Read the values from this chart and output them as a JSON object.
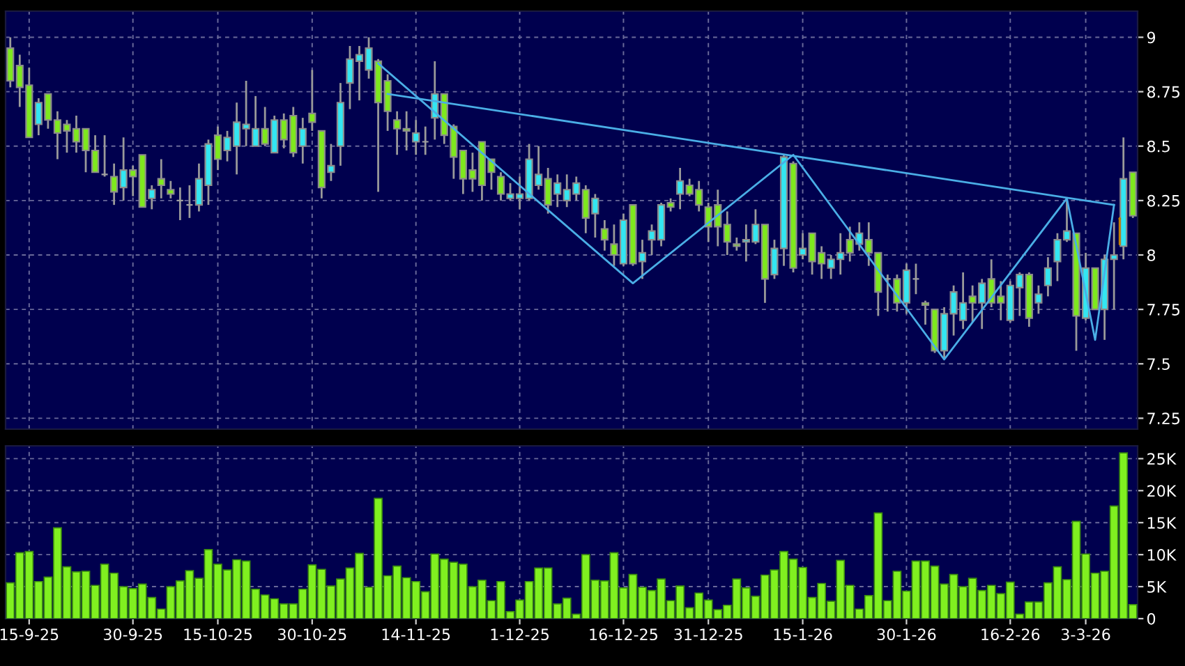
{
  "chart_data": [
    {
      "type": "candlestick",
      "tick_labels": "y",
      "grid": true,
      "ylim": [
        7.2,
        9.12
      ],
      "yticks": [
        7.25,
        7.5,
        7.75,
        8,
        8.25,
        8.5,
        8.75,
        9
      ],
      "categories": [
        null,
        null,
        null,
        null,
        null,
        null,
        null,
        null,
        null,
        null,
        null,
        null,
        null,
        null,
        null,
        null,
        null,
        null,
        null,
        null,
        null,
        null,
        null,
        null,
        null,
        null,
        null,
        null,
        null,
        null,
        null,
        null,
        null,
        null,
        null,
        null,
        null,
        null,
        null,
        null,
        null,
        null,
        null,
        null,
        null,
        null,
        null,
        null,
        null,
        null,
        null,
        null,
        null,
        null,
        null,
        null,
        null,
        null,
        null,
        null,
        null,
        null,
        null,
        null,
        null,
        null,
        null,
        null,
        null,
        null,
        null,
        null,
        null,
        null,
        null,
        null,
        null,
        null,
        null,
        null,
        null,
        null,
        null,
        null,
        null,
        null,
        null,
        null,
        null,
        null,
        null,
        null,
        null,
        null,
        null,
        null,
        null,
        null,
        null,
        null,
        null,
        null,
        null,
        null,
        null,
        null,
        null,
        null,
        null,
        null,
        null,
        null,
        null,
        null,
        null,
        null,
        null,
        null,
        null,
        null
      ],
      "ohlc": [
        [
          8.95,
          9.0,
          8.77,
          8.8
        ],
        [
          8.87,
          8.92,
          8.68,
          8.77
        ],
        [
          8.78,
          8.86,
          8.54,
          8.54
        ],
        [
          8.6,
          8.72,
          8.55,
          8.7
        ],
        [
          8.74,
          8.74,
          8.58,
          8.62
        ],
        [
          8.62,
          8.66,
          8.44,
          8.56
        ],
        [
          8.6,
          8.62,
          8.47,
          8.57
        ],
        [
          8.58,
          8.64,
          8.47,
          8.52
        ],
        [
          8.58,
          8.58,
          8.38,
          8.48
        ],
        [
          8.48,
          8.55,
          8.38,
          8.38
        ],
        [
          8.37,
          8.55,
          8.36,
          8.37
        ],
        [
          8.36,
          8.42,
          8.23,
          8.29
        ],
        [
          8.31,
          8.54,
          8.25,
          8.39
        ],
        [
          8.39,
          8.41,
          8.27,
          8.36
        ],
        [
          8.46,
          8.46,
          8.22,
          8.22
        ],
        [
          8.26,
          8.32,
          8.21,
          8.3
        ],
        [
          8.35,
          8.44,
          8.26,
          8.32
        ],
        [
          8.3,
          8.34,
          8.26,
          8.28
        ],
        [
          8.25,
          8.31,
          8.16,
          8.25
        ],
        [
          8.23,
          8.32,
          8.17,
          8.23
        ],
        [
          8.23,
          8.42,
          8.2,
          8.35
        ],
        [
          8.32,
          8.53,
          8.23,
          8.51
        ],
        [
          8.55,
          8.59,
          8.39,
          8.44
        ],
        [
          8.48,
          8.57,
          8.43,
          8.54
        ],
        [
          8.5,
          8.7,
          8.37,
          8.61
        ],
        [
          8.58,
          8.8,
          8.5,
          8.6
        ],
        [
          8.5,
          8.73,
          8.5,
          8.58
        ],
        [
          8.58,
          8.68,
          8.5,
          8.51
        ],
        [
          8.47,
          8.64,
          8.47,
          8.62
        ],
        [
          8.62,
          8.65,
          8.49,
          8.53
        ],
        [
          8.64,
          8.68,
          8.45,
          8.47
        ],
        [
          8.5,
          8.63,
          8.42,
          8.58
        ],
        [
          8.65,
          8.85,
          8.57,
          8.61
        ],
        [
          8.57,
          8.57,
          8.26,
          8.31
        ],
        [
          8.38,
          8.51,
          8.34,
          8.41
        ],
        [
          8.5,
          8.79,
          8.41,
          8.7
        ],
        [
          8.79,
          8.96,
          8.67,
          8.9
        ],
        [
          8.89,
          8.96,
          8.71,
          8.92
        ],
        [
          8.85,
          9.0,
          8.81,
          8.95
        ],
        [
          8.89,
          8.9,
          8.29,
          8.7
        ],
        [
          8.8,
          8.83,
          8.57,
          8.66
        ],
        [
          8.62,
          8.66,
          8.46,
          8.58
        ],
        [
          8.58,
          8.66,
          8.48,
          8.57
        ],
        [
          8.52,
          8.62,
          8.46,
          8.56
        ],
        [
          8.52,
          8.59,
          8.46,
          8.52
        ],
        [
          8.63,
          8.89,
          8.53,
          8.74
        ],
        [
          8.74,
          8.74,
          8.51,
          8.55
        ],
        [
          8.59,
          8.6,
          8.35,
          8.45
        ],
        [
          8.48,
          8.48,
          8.28,
          8.35
        ],
        [
          8.39,
          8.47,
          8.29,
          8.35
        ],
        [
          8.52,
          8.52,
          8.25,
          8.32
        ],
        [
          8.44,
          8.44,
          8.3,
          8.38
        ],
        [
          8.36,
          8.38,
          8.25,
          8.28
        ],
        [
          8.26,
          8.33,
          8.25,
          8.28
        ],
        [
          8.26,
          8.36,
          8.21,
          8.28
        ],
        [
          8.26,
          8.51,
          8.25,
          8.44
        ],
        [
          8.32,
          8.5,
          8.3,
          8.37
        ],
        [
          8.35,
          8.4,
          8.19,
          8.23
        ],
        [
          8.28,
          8.37,
          8.22,
          8.33
        ],
        [
          8.25,
          8.37,
          8.22,
          8.3
        ],
        [
          8.28,
          8.36,
          8.25,
          8.33
        ],
        [
          8.3,
          8.32,
          8.1,
          8.17
        ],
        [
          8.19,
          8.28,
          8.08,
          8.26
        ],
        [
          8.12,
          8.16,
          8.02,
          8.07
        ],
        [
          8.05,
          8.14,
          7.95,
          8.0
        ],
        [
          7.96,
          8.19,
          7.95,
          8.16
        ],
        [
          8.23,
          8.23,
          7.95,
          7.96
        ],
        [
          7.97,
          8.07,
          7.89,
          8.01
        ],
        [
          8.07,
          8.14,
          8.0,
          8.11
        ],
        [
          8.07,
          8.24,
          8.04,
          8.23
        ],
        [
          8.24,
          8.26,
          8.2,
          8.22
        ],
        [
          8.28,
          8.4,
          8.21,
          8.34
        ],
        [
          8.32,
          8.35,
          8.27,
          8.28
        ],
        [
          8.3,
          8.34,
          8.2,
          8.23
        ],
        [
          8.22,
          8.24,
          8.06,
          8.13
        ],
        [
          8.23,
          8.3,
          8.04,
          8.13
        ],
        [
          8.14,
          8.2,
          8.0,
          8.06
        ],
        [
          8.05,
          8.08,
          8.02,
          8.04
        ],
        [
          8.06,
          8.14,
          7.97,
          8.07
        ],
        [
          8.06,
          8.21,
          8.05,
          8.14
        ],
        [
          8.14,
          8.14,
          7.78,
          7.89
        ],
        [
          7.91,
          8.07,
          7.89,
          8.03
        ],
        [
          8.03,
          8.46,
          7.95,
          8.45
        ],
        [
          8.42,
          8.43,
          7.92,
          7.94
        ],
        [
          8.0,
          8.1,
          7.98,
          8.03
        ],
        [
          8.1,
          8.1,
          7.91,
          7.97
        ],
        [
          8.01,
          8.04,
          7.89,
          7.96
        ],
        [
          7.94,
          8.0,
          7.89,
          7.98
        ],
        [
          7.98,
          8.1,
          7.91,
          8.01
        ],
        [
          8.07,
          8.13,
          7.97,
          8.01
        ],
        [
          8.05,
          8.15,
          8.02,
          8.1
        ],
        [
          8.07,
          8.15,
          7.95,
          8.01
        ],
        [
          8.01,
          8.01,
          7.72,
          7.83
        ],
        [
          7.89,
          7.91,
          7.74,
          7.89
        ],
        [
          7.89,
          7.91,
          7.74,
          7.78
        ],
        [
          7.78,
          7.96,
          7.73,
          7.93
        ],
        [
          7.89,
          7.96,
          7.82,
          7.89
        ],
        [
          7.78,
          7.79,
          7.68,
          7.77
        ],
        [
          7.75,
          7.75,
          7.55,
          7.56
        ],
        [
          7.56,
          7.76,
          7.52,
          7.73
        ],
        [
          7.73,
          7.86,
          7.63,
          7.83
        ],
        [
          7.7,
          7.92,
          7.66,
          7.78
        ],
        [
          7.81,
          7.86,
          7.69,
          7.78
        ],
        [
          7.78,
          7.89,
          7.66,
          7.87
        ],
        [
          7.89,
          7.98,
          7.76,
          7.78
        ],
        [
          7.81,
          7.88,
          7.7,
          7.78
        ],
        [
          7.7,
          7.88,
          7.69,
          7.86
        ],
        [
          7.85,
          7.92,
          7.72,
          7.91
        ],
        [
          7.91,
          7.92,
          7.67,
          7.71
        ],
        [
          7.78,
          7.86,
          7.73,
          7.82
        ],
        [
          7.86,
          7.99,
          7.81,
          7.94
        ],
        [
          7.97,
          8.1,
          7.88,
          8.07
        ],
        [
          8.07,
          8.26,
          8.06,
          8.11
        ],
        [
          8.1,
          8.1,
          7.56,
          7.72
        ],
        [
          7.71,
          8.01,
          7.7,
          7.94
        ],
        [
          7.94,
          7.94,
          7.75,
          7.75
        ],
        [
          7.75,
          8.0,
          7.61,
          7.98
        ],
        [
          7.98,
          8.15,
          7.75,
          8.0
        ],
        [
          8.04,
          8.54,
          7.98,
          8.35
        ],
        [
          8.38,
          8.38,
          8.17,
          8.18
        ]
      ],
      "colors": [
        "#7ee81e",
        "#7ee81e",
        "#7ee81e",
        "#33e6f2",
        "#7ee81e",
        "#7ee81e",
        "#7ee81e",
        "#7ee81e",
        "#7ee81e",
        "#7ee81e",
        "#a0a0a0",
        "#7ee81e",
        "#33e6f2",
        "#7ee81e",
        "#7ee81e",
        "#33e6f2",
        "#7ee81e",
        "#7ee81e",
        "#a0a0a0",
        "#a0a0a0",
        "#33e6f2",
        "#33e6f2",
        "#7ee81e",
        "#33e6f2",
        "#33e6f2",
        "#33e6f2",
        "#33e6f2",
        "#7ee81e",
        "#33e6f2",
        "#7ee81e",
        "#7ee81e",
        "#33e6f2",
        "#7ee81e",
        "#7ee81e",
        "#33e6f2",
        "#33e6f2",
        "#33e6f2",
        "#33e6f2",
        "#33e6f2",
        "#7ee81e",
        "#7ee81e",
        "#7ee81e",
        "#7ee81e",
        "#33e6f2",
        "#a0a0a0",
        "#33e6f2",
        "#7ee81e",
        "#7ee81e",
        "#7ee81e",
        "#7ee81e",
        "#7ee81e",
        "#7ee81e",
        "#7ee81e",
        "#33e6f2",
        "#33e6f2",
        "#33e6f2",
        "#33e6f2",
        "#7ee81e",
        "#33e6f2",
        "#33e6f2",
        "#33e6f2",
        "#7ee81e",
        "#33e6f2",
        "#7ee81e",
        "#7ee81e",
        "#33e6f2",
        "#7ee81e",
        "#33e6f2",
        "#33e6f2",
        "#33e6f2",
        "#7ee81e",
        "#33e6f2",
        "#7ee81e",
        "#7ee81e",
        "#7ee81e",
        "#7ee81e",
        "#7ee81e",
        "#7ee81e",
        "#33e6f2",
        "#33e6f2",
        "#7ee81e",
        "#33e6f2",
        "#33e6f2",
        "#7ee81e",
        "#33e6f2",
        "#7ee81e",
        "#7ee81e",
        "#33e6f2",
        "#33e6f2",
        "#7ee81e",
        "#33e6f2",
        "#7ee81e",
        "#7ee81e",
        "#a0a0a0",
        "#7ee81e",
        "#33e6f2",
        "#a0a0a0",
        "#7ee81e",
        "#7ee81e",
        "#33e6f2",
        "#33e6f2",
        "#33e6f2",
        "#7ee81e",
        "#33e6f2",
        "#7ee81e",
        "#7ee81e",
        "#33e6f2",
        "#33e6f2",
        "#7ee81e",
        "#33e6f2",
        "#33e6f2",
        "#33e6f2",
        "#33e6f2",
        "#7ee81e",
        "#33e6f2",
        "#7ee81e",
        "#33e6f2",
        "#33e6f2",
        "#33e6f2",
        "#7ee81e"
      ],
      "series": [
        {
          "type": "line",
          "color": "#4aaee6",
          "values": [
            null,
            null,
            null,
            null,
            null,
            null,
            null,
            null,
            null,
            null,
            null,
            null,
            null,
            null,
            null,
            null,
            null,
            null,
            null,
            null,
            null,
            null,
            null,
            null,
            null,
            null,
            null,
            null,
            null,
            null,
            null,
            null,
            null,
            null,
            null,
            null,
            null,
            null,
            null,
            null,
            8.74,
            null,
            null,
            null,
            null,
            null,
            null,
            null,
            null,
            null,
            null,
            null,
            null,
            null,
            null,
            null,
            null,
            null,
            null,
            null,
            null,
            null,
            null,
            null,
            null,
            null,
            null,
            null,
            null,
            null,
            null,
            null,
            null,
            null,
            null,
            null,
            null,
            null,
            null,
            null,
            null,
            null,
            null,
            null,
            null,
            null,
            null,
            null,
            null,
            null,
            null,
            null,
            null,
            null,
            null,
            null,
            null,
            null,
            null,
            null,
            null,
            null,
            null,
            null,
            null,
            null,
            null,
            null,
            null,
            null,
            null,
            null,
            null,
            null,
            null,
            null,
            null,
            8.23,
            null,
            null
          ]
        },
        {
          "type": "line",
          "color": "#4aaee6",
          "values": [
            null,
            null,
            null,
            null,
            null,
            null,
            null,
            null,
            null,
            null,
            null,
            null,
            null,
            null,
            null,
            null,
            null,
            null,
            null,
            null,
            null,
            null,
            null,
            null,
            null,
            null,
            null,
            null,
            null,
            null,
            null,
            null,
            null,
            null,
            null,
            null,
            null,
            null,
            null,
            8.88,
            null,
            null,
            null,
            null,
            null,
            null,
            null,
            null,
            null,
            null,
            null,
            null,
            null,
            null,
            null,
            null,
            null,
            null,
            null,
            null,
            null,
            null,
            null,
            null,
            null,
            null,
            7.87,
            null,
            null,
            null,
            null,
            null,
            null,
            null,
            null,
            null,
            null,
            null,
            null,
            null,
            null,
            null,
            null,
            8.46,
            null,
            null,
            null,
            null,
            null,
            null,
            null,
            null,
            null,
            null,
            null,
            null,
            null,
            null,
            null,
            7.52,
            null,
            null,
            null,
            null,
            null,
            null,
            null,
            null,
            null,
            null,
            null,
            null,
            8.26,
            null,
            null,
            7.61,
            null,
            8.23,
            null,
            null
          ]
        }
      ]
    },
    {
      "type": "bar",
      "grid": true,
      "color": "#80f020",
      "ylim": [
        0,
        27000
      ],
      "yticks": [
        0,
        {
          "value": 5000,
          "label": "5K"
        },
        {
          "value": 10000,
          "label": "10K"
        },
        {
          "value": 15000,
          "label": "15K"
        },
        {
          "value": 20000,
          "label": "20K"
        },
        {
          "value": 25000,
          "label": "25K"
        }
      ],
      "categories": [
        null,
        null,
        "15-9-25",
        null,
        null,
        null,
        null,
        null,
        null,
        null,
        null,
        null,
        null,
        "30-9-25",
        null,
        null,
        null,
        null,
        null,
        null,
        null,
        null,
        "15-10-25",
        null,
        null,
        null,
        null,
        null,
        null,
        null,
        null,
        null,
        "30-10-25",
        null,
        null,
        null,
        null,
        null,
        null,
        null,
        null,
        null,
        null,
        "14-11-25",
        null,
        null,
        null,
        null,
        null,
        null,
        null,
        null,
        null,
        null,
        "1-12-25",
        null,
        null,
        null,
        null,
        null,
        null,
        null,
        null,
        null,
        null,
        "16-12-25",
        null,
        null,
        null,
        null,
        null,
        null,
        null,
        null,
        "31-12-25",
        null,
        null,
        null,
        null,
        null,
        null,
        null,
        null,
        null,
        "15-1-26",
        null,
        null,
        null,
        null,
        null,
        null,
        null,
        null,
        null,
        null,
        "30-1-26",
        null,
        null,
        null,
        null,
        null,
        null,
        null,
        null,
        null,
        null,
        "16-2-26",
        null,
        null,
        null,
        null,
        null,
        null,
        null,
        "3-3-26",
        null,
        null,
        null,
        null,
        null
      ],
      "values": [
        5600,
        10300,
        10500,
        5800,
        6500,
        14200,
        8100,
        7300,
        7400,
        5200,
        8500,
        7100,
        5000,
        4700,
        5400,
        3300,
        1500,
        5000,
        5900,
        7500,
        6300,
        10800,
        8500,
        7600,
        9200,
        9000,
        4600,
        3700,
        3100,
        2300,
        2300,
        4600,
        8400,
        7700,
        5100,
        6200,
        7900,
        10200,
        4900,
        18800,
        6700,
        8200,
        6400,
        5800,
        4200,
        10100,
        9300,
        8800,
        8500,
        5000,
        6000,
        2800,
        5800,
        1100,
        2900,
        5800,
        7900,
        7900,
        2300,
        3200,
        700,
        10000,
        6000,
        5900,
        10300,
        4800,
        6900,
        4900,
        4400,
        6200,
        2800,
        5100,
        1700,
        4000,
        2900,
        1400,
        2100,
        6200,
        4800,
        3500,
        6800,
        7600,
        10500,
        9300,
        8000,
        3300,
        5500,
        2700,
        9100,
        5200,
        1500,
        3600,
        16500,
        2800,
        7400,
        4300,
        9000,
        9000,
        8200,
        5400,
        6900,
        5000,
        6300,
        4400,
        5200,
        3900,
        5700,
        700,
        2600,
        2600,
        5600,
        8100,
        6100,
        15200,
        10100,
        7100,
        7400,
        17600,
        25900,
        2200
      ]
    }
  ]
}
